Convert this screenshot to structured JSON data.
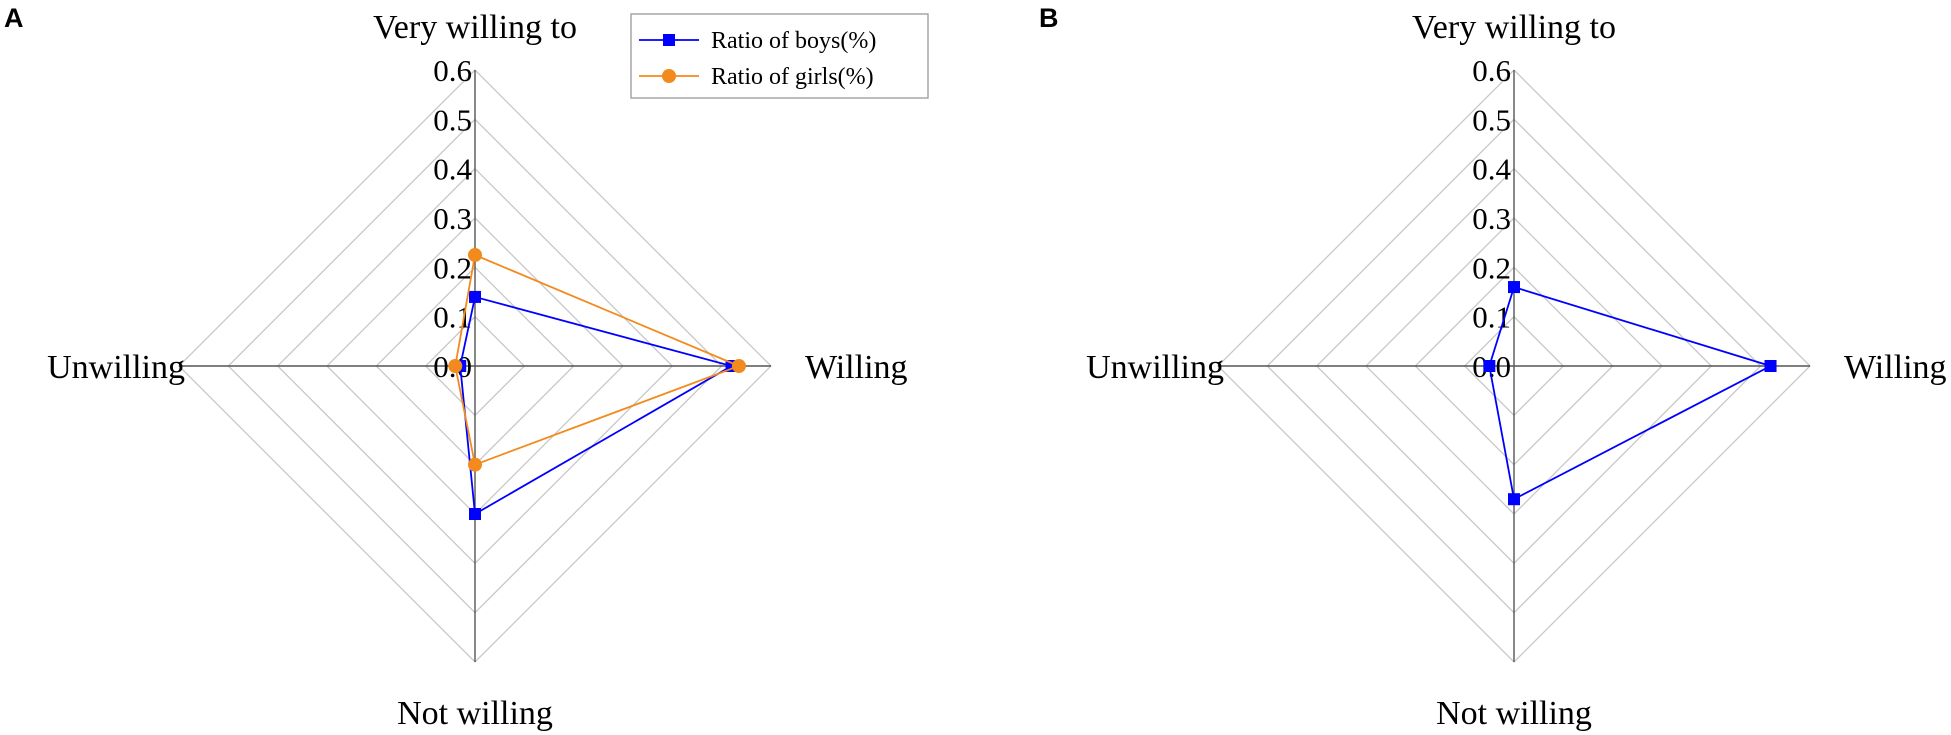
{
  "chart_data": [
    {
      "panel": "A",
      "type": "radar",
      "axes": [
        "Very willing to",
        "Willing",
        "Not willing",
        "Unwilling"
      ],
      "rmax": 0.6,
      "ticks": [
        "0.0",
        "0.1",
        "0.2",
        "0.3",
        "0.4",
        "0.5",
        "0.6"
      ],
      "legend": {
        "placement": "top-right"
      },
      "series": [
        {
          "name": "Ratio of boys(%)",
          "color": "#0000ff",
          "marker": "square",
          "values": [
            0.14,
            0.52,
            0.3,
            0.03
          ]
        },
        {
          "name": "Ratio of girls(%)",
          "color": "#f28a1d",
          "marker": "circle",
          "values": [
            0.225,
            0.535,
            0.2,
            0.04
          ]
        }
      ]
    },
    {
      "panel": "B",
      "type": "radar",
      "axes": [
        "Very willing to",
        "Willing",
        "Not willing",
        "Unwilling"
      ],
      "rmax": 0.6,
      "ticks": [
        "0.0",
        "0.1",
        "0.2",
        "0.3",
        "0.4",
        "0.5",
        "0.6"
      ],
      "series": [
        {
          "color": "#0000ff",
          "marker": "square",
          "values": [
            0.16,
            0.52,
            0.27,
            0.05
          ]
        }
      ]
    }
  ]
}
